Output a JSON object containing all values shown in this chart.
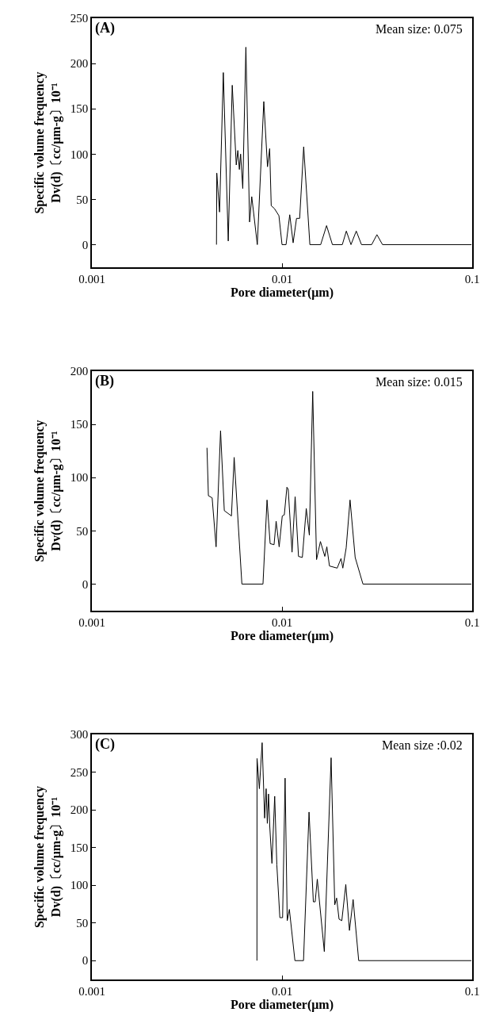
{
  "chart_data": [
    {
      "type": "line",
      "title": "(A)",
      "xlabel": "Pore diameter(μm)",
      "ylabel": "Specific volume frequency\nDv(d)〔cc/μm-g〕10⁻¹",
      "annotations": [
        "Mean size: 0.075"
      ],
      "color": "#000000",
      "log": "x",
      "xlim": [
        0.001,
        0.1
      ],
      "xticks": [
        0.001,
        0.01,
        0.1
      ],
      "ylim": [
        -25,
        250
      ],
      "yticks": [
        0,
        50,
        100,
        150,
        200,
        250
      ],
      "x": [
        0.004521,
        0.004538,
        0.004693,
        0.004912,
        0.005214,
        0.005472,
        0.005745,
        0.005855,
        0.005966,
        0.006056,
        0.006216,
        0.006455,
        0.006751,
        0.00693,
        0.007413,
        0.008019,
        0.008387,
        0.00861,
        0.008773,
        0.009108,
        0.009632,
        0.01,
        0.0105,
        0.01098,
        0.01144,
        0.01192,
        0.01238,
        0.013,
        0.01401,
        0.01597,
        0.01715,
        0.01841,
        0.02075,
        0.02179,
        0.02305,
        0.02457,
        0.02618,
        0.02961,
        0.03156,
        0.03377,
        0.0992
      ],
      "values": [
        0,
        79,
        36,
        190,
        4,
        176,
        88,
        104,
        83,
        100,
        62,
        218,
        25,
        53,
        0,
        158,
        86,
        106,
        43,
        40,
        32,
        0,
        0,
        33,
        2,
        29,
        29,
        108,
        0,
        0,
        21,
        0,
        0,
        15,
        0,
        15,
        0,
        0,
        11,
        0,
        0
      ]
    },
    {
      "type": "line",
      "title": "(B)",
      "xlabel": "Pore diameter(μm)",
      "ylabel": "Specific volume frequency\nDv(d)〔cc/μm-g〕10⁻¹",
      "annotations": [
        "Mean size: 0.015"
      ],
      "color": "#000000",
      "log": "x",
      "xlim": [
        0.001,
        0.1
      ],
      "xticks": [
        0.001,
        0.01,
        0.1
      ],
      "ylim": [
        -25,
        200
      ],
      "yticks": [
        0,
        50,
        100,
        150,
        200
      ],
      "x": [
        0.00403,
        0.0041,
        0.00429,
        0.0045,
        0.00475,
        0.00497,
        0.00542,
        0.0056,
        0.00615,
        0.00794,
        0.00834,
        0.00866,
        0.00908,
        0.00931,
        0.00966,
        0.01003,
        0.01028,
        0.01061,
        0.01078,
        0.01129,
        0.01172,
        0.01221,
        0.01279,
        0.01341,
        0.01392,
        0.0145,
        0.01519,
        0.01592,
        0.01679,
        0.01721,
        0.01776,
        0.0195,
        0.02043,
        0.02088,
        0.02175,
        0.02279,
        0.02425,
        0.02665,
        0.099
      ],
      "values": [
        128,
        83,
        81,
        35,
        144,
        69,
        64,
        119,
        0,
        0,
        79,
        38,
        37,
        59,
        35,
        64,
        65,
        91,
        89,
        30,
        82,
        26,
        25,
        71,
        46,
        181,
        23,
        40,
        26,
        35,
        17,
        15,
        24,
        15,
        34,
        79,
        25,
        0,
        0
      ]
    },
    {
      "type": "line",
      "title": "(C)",
      "xlabel": "Pore diameter(μm)",
      "ylabel": "Specific volume frequency\nDv(d)〔cc/μm-g〕10⁻¹",
      "annotations": [
        "Mean size :0.02"
      ],
      "color": "#000000",
      "log": "x",
      "xlim": [
        0.001,
        0.1
      ],
      "xticks": [
        0.001,
        0.01,
        0.1
      ],
      "ylim": [
        -25,
        300
      ],
      "yticks": [
        0,
        50,
        100,
        150,
        200,
        250,
        300
      ],
      "x": [
        0.00738,
        0.00739,
        0.0076,
        0.00786,
        0.0081,
        0.00825,
        0.00837,
        0.00849,
        0.00862,
        0.00885,
        0.00915,
        0.00939,
        0.00974,
        0.01007,
        0.01038,
        0.01065,
        0.01093,
        0.01169,
        0.01297,
        0.01387,
        0.01461,
        0.01494,
        0.01533,
        0.01669,
        0.01812,
        0.01894,
        0.01937,
        0.01995,
        0.02063,
        0.02165,
        0.02263,
        0.02366,
        0.02531,
        0.099
      ],
      "values": [
        0,
        268,
        228,
        289,
        189,
        228,
        182,
        221,
        178,
        129,
        218,
        127,
        57,
        57,
        242,
        53,
        68,
        0,
        0,
        197,
        78,
        78,
        108,
        12,
        269,
        74,
        83,
        55,
        53,
        101,
        40,
        81,
        0,
        0
      ]
    }
  ]
}
